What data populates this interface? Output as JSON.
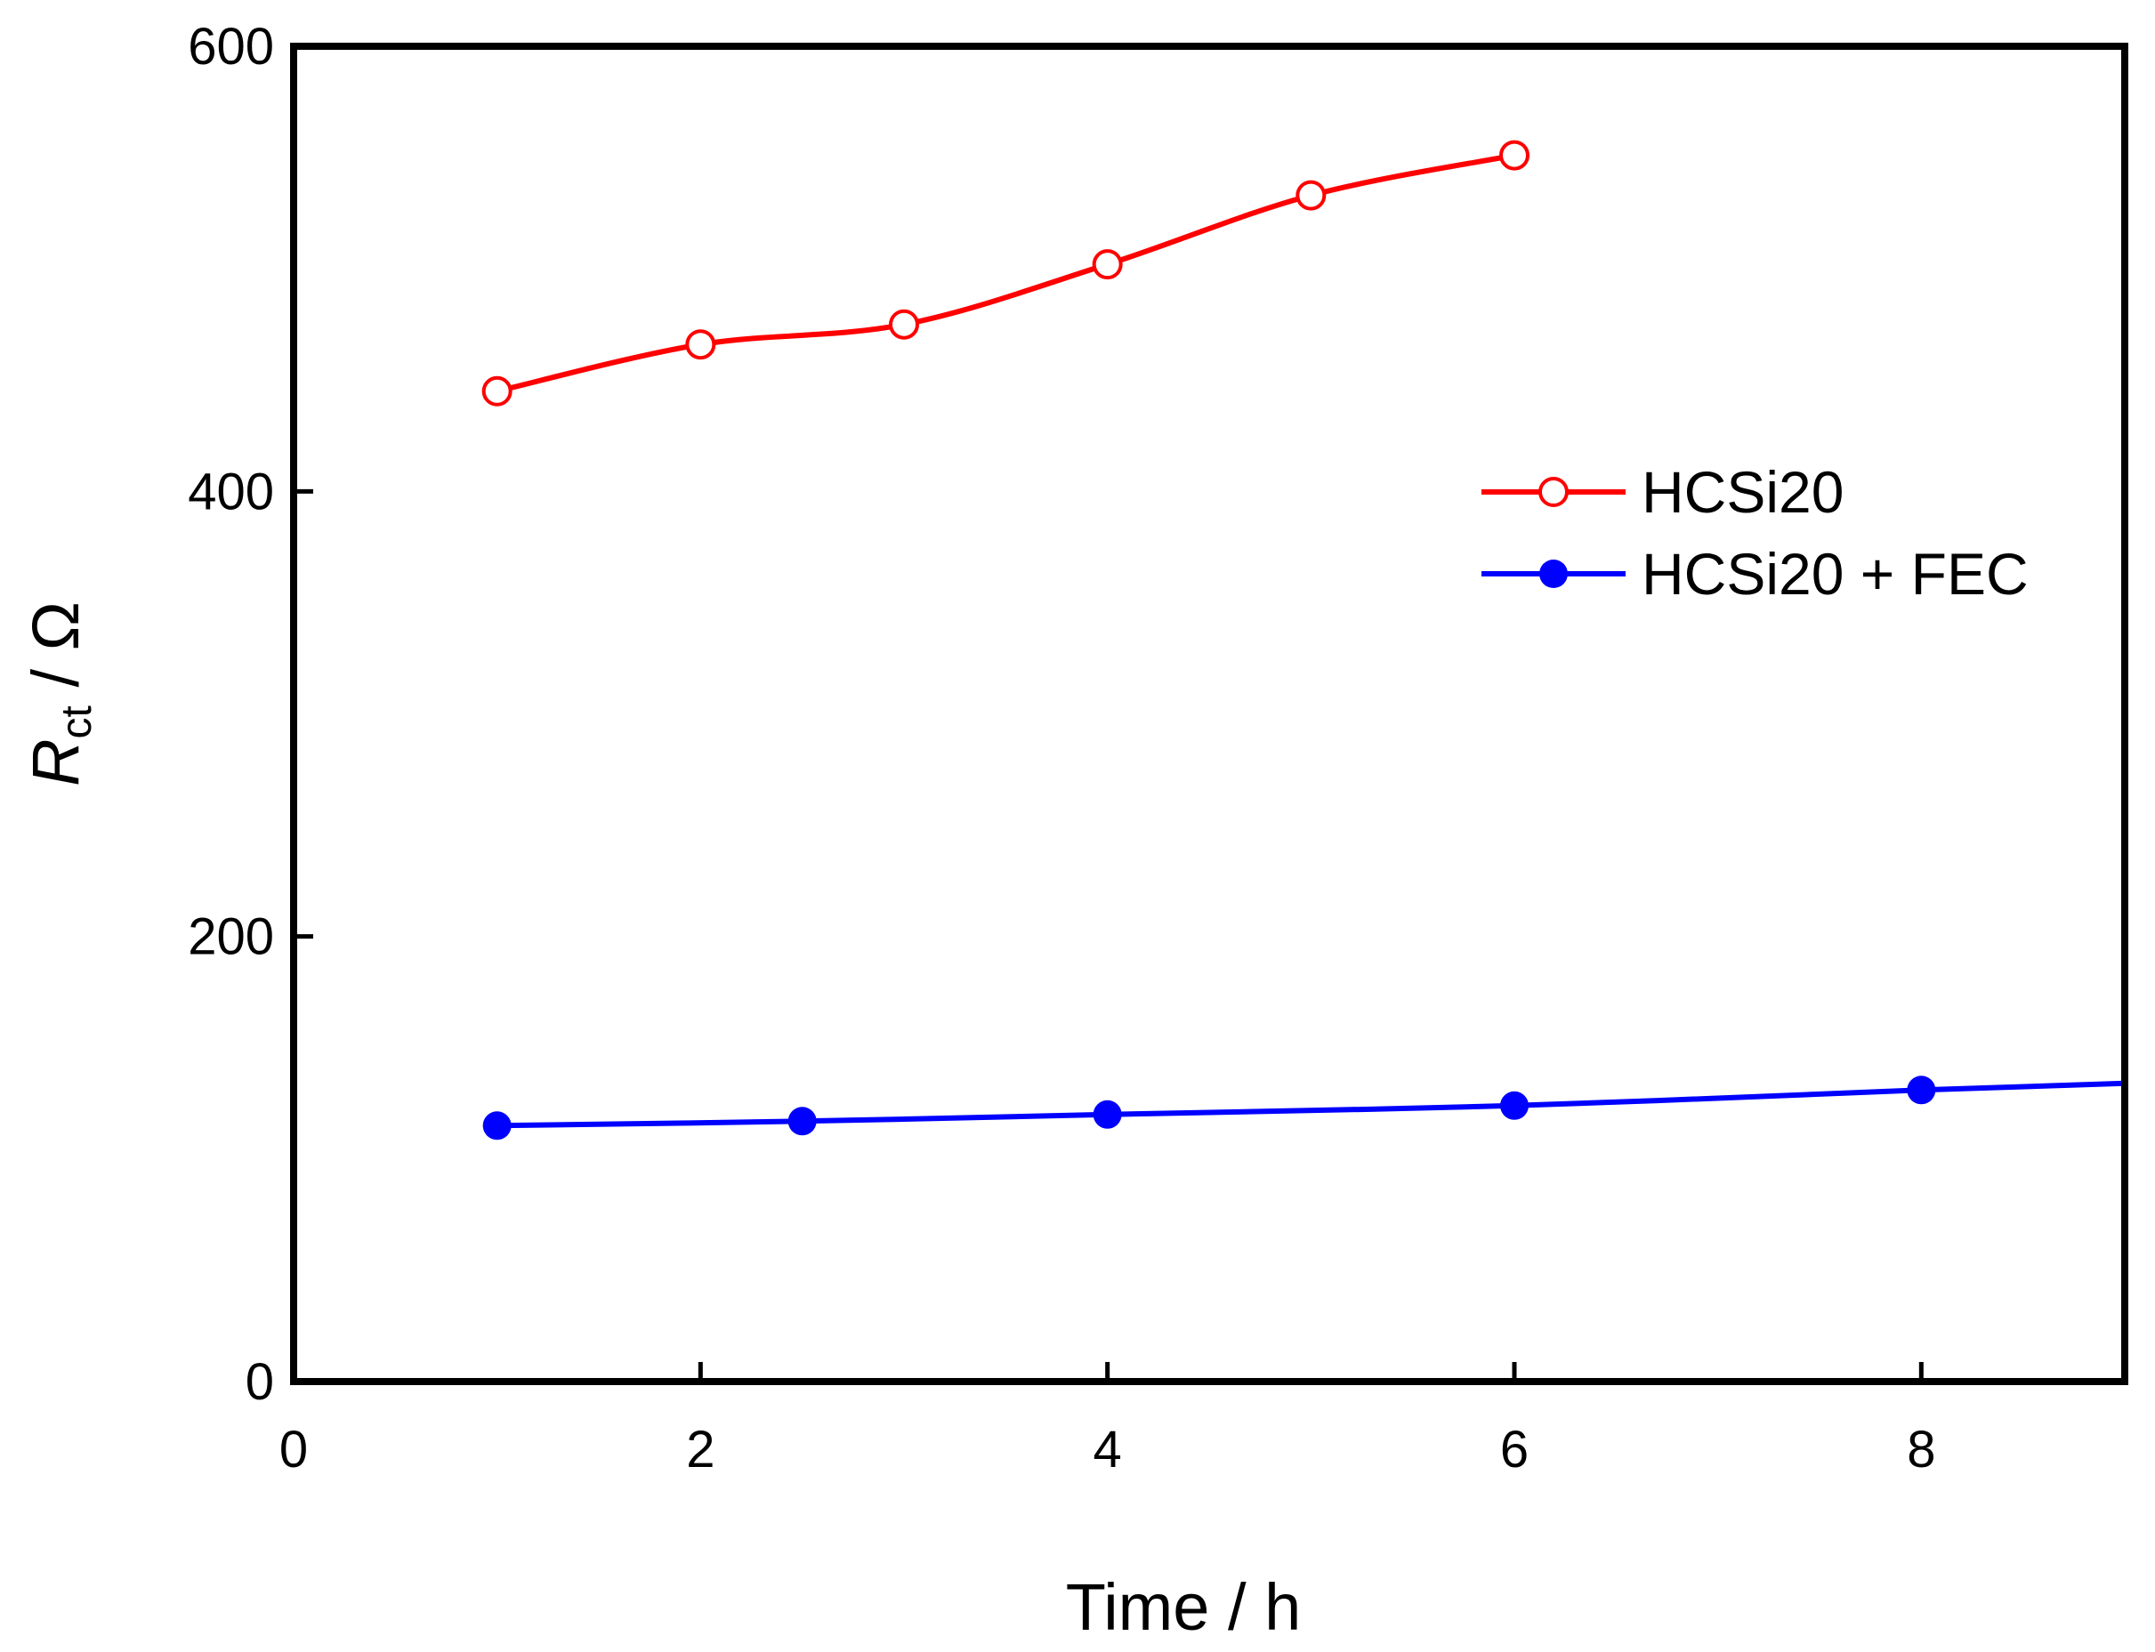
{
  "chart_data": {
    "type": "line",
    "title": "",
    "xlabel": "Time / h",
    "ylabel": {
      "symbol": "R",
      "subscript": "ct",
      "unit": " / Ω"
    },
    "xlim": [
      0,
      9
    ],
    "ylim": [
      0,
      600
    ],
    "xticks": [
      0,
      2,
      4,
      6,
      8
    ],
    "yticks": [
      0,
      200,
      400,
      600
    ],
    "grid": false,
    "legend_position": "upper-right",
    "series": [
      {
        "name": "HCSi20",
        "color": "#ff0000",
        "marker": "open-circle",
        "x": [
          1,
          2,
          3,
          4,
          5,
          6
        ],
        "y": [
          445,
          466,
          475,
          502,
          533,
          551
        ]
      },
      {
        "name": "HCSi20 + FEC",
        "color": "#0000ff",
        "marker": "filled-circle",
        "x": [
          1,
          2.5,
          4,
          6,
          8,
          9
        ],
        "y": [
          115,
          117,
          120,
          124,
          131,
          134
        ],
        "x_markers": [
          1,
          2.5,
          4,
          6,
          8
        ]
      }
    ]
  }
}
